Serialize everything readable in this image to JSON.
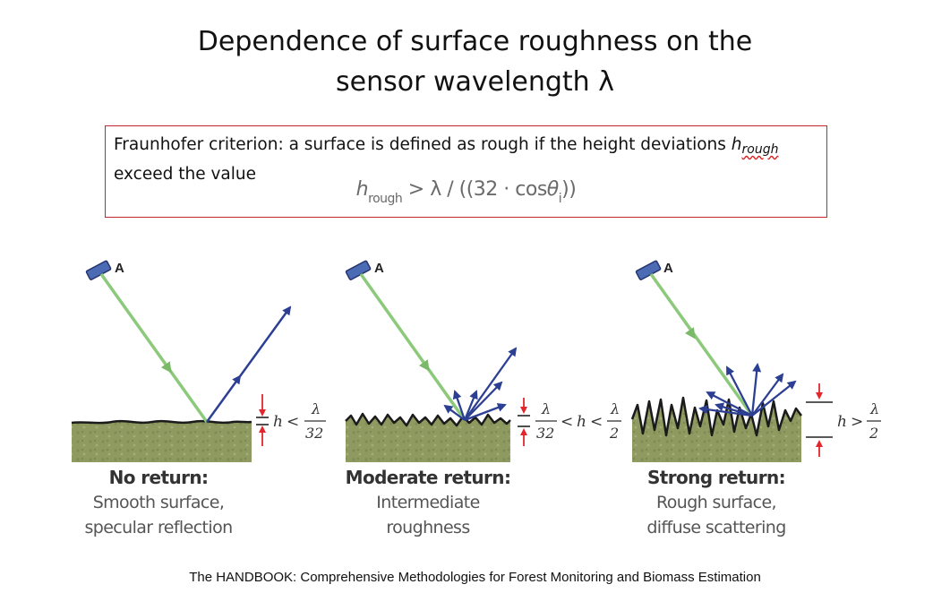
{
  "title": {
    "line1": "Dependence of surface roughness on the",
    "line2": "sensor wavelength λ"
  },
  "criterion": {
    "text": "Fraunhofer criterion: a surface is defined as rough if the height deviations",
    "h_symbol": "h",
    "h_sub": "rough",
    "text_end": "exceed the value",
    "formula_h": "h",
    "formula_sub": "rough",
    "formula_mid": " > λ / ((32 · cos",
    "formula_theta": "θ",
    "formula_theta_sub": "i",
    "formula_end": "))"
  },
  "panels": [
    {
      "sensor_label": "A",
      "condition": {
        "h": "h",
        "op": "<",
        "num": "λ",
        "den": "32"
      },
      "caption_title": "No return:",
      "caption_line1": "Smooth surface,",
      "caption_line2": "specular reflection"
    },
    {
      "sensor_label": "A",
      "condition": {
        "num1": "λ",
        "den1": "32",
        "op1": "<",
        "h": "h",
        "op2": "<",
        "num2": "λ",
        "den2": "2"
      },
      "caption_title": "Moderate return:",
      "caption_line1": "Intermediate",
      "caption_line2": "roughness"
    },
    {
      "sensor_label": "A",
      "condition": {
        "h": "h",
        "op": ">",
        "num": "λ",
        "den": "2"
      },
      "caption_title": "Strong return:",
      "caption_line1": "Rough surface,",
      "caption_line2": "diffuse scattering"
    }
  ],
  "colors": {
    "incident": "#8cc97a",
    "reflected": "#2c3f93",
    "sensor": "#4b6bb5",
    "ground": "#8e9a60",
    "marker": "#e2262d",
    "box_border": "#c0282d"
  },
  "footer": "The HANDBOOK: Comprehensive Methodologies for Forest Monitoring and Biomass Estimation"
}
